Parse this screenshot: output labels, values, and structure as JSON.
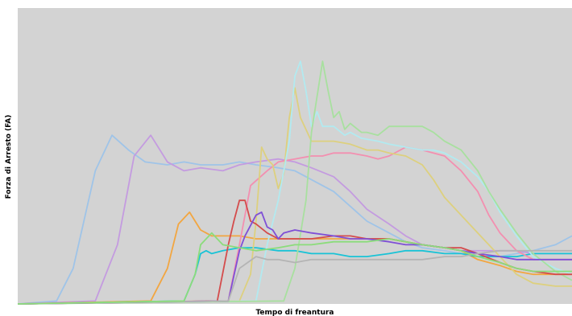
{
  "chart_data": {
    "type": "line",
    "title": "",
    "xlabel": "Tempo di freantura",
    "ylabel": "Forza di Arresto (FA)",
    "xlim": [
      0,
      100
    ],
    "ylim": [
      0,
      100
    ],
    "grid": false,
    "legend": "none",
    "background": "#d3d3d3",
    "series": [
      {
        "color": "#9fc4e8",
        "x": [
          0,
          7,
          10,
          14,
          17,
          20,
          23,
          27,
          30,
          33,
          37,
          40,
          43,
          47,
          50,
          53,
          57,
          60,
          63,
          67,
          70,
          73,
          77,
          80,
          83,
          87,
          90,
          93,
          97,
          100
        ],
        "y": [
          0,
          1,
          12,
          45,
          57,
          52,
          48,
          47,
          48,
          47,
          47,
          48,
          47,
          46,
          45,
          42,
          38,
          33,
          28,
          24,
          21,
          19,
          18,
          17,
          16,
          16,
          17,
          18,
          20,
          23
        ]
      },
      {
        "color": "#c49be0",
        "x": [
          0,
          14,
          18,
          21,
          24,
          27,
          30,
          33,
          37,
          40,
          43,
          47,
          50,
          53,
          57,
          60,
          63,
          67,
          70,
          73,
          77,
          80,
          83,
          87,
          90,
          93,
          97,
          100
        ],
        "y": [
          0,
          1,
          20,
          50,
          57,
          48,
          45,
          46,
          45,
          47,
          48,
          49,
          48,
          46,
          43,
          38,
          32,
          27,
          23,
          20,
          19,
          18,
          18,
          18,
          18,
          17,
          17,
          17
        ]
      },
      {
        "color": "#f2a641",
        "x": [
          0,
          24,
          27,
          29,
          31,
          33,
          35,
          37,
          40,
          43,
          47,
          50,
          53,
          57,
          60,
          63,
          67,
          70,
          73,
          77,
          80,
          83,
          87,
          90,
          93,
          97,
          100
        ],
        "y": [
          0,
          1,
          12,
          27,
          31,
          25,
          23,
          23,
          23,
          22,
          22,
          22,
          22,
          22,
          22,
          22,
          22,
          21,
          20,
          19,
          18,
          15,
          13,
          11,
          10,
          10,
          10
        ]
      },
      {
        "color": "#19c3d6",
        "x": [
          0,
          30,
          32,
          33,
          34,
          35,
          37,
          40,
          43,
          47,
          50,
          53,
          57,
          60,
          63,
          67,
          70,
          73,
          77,
          80,
          83,
          87,
          90,
          93,
          97,
          100
        ],
        "y": [
          0,
          1,
          10,
          17,
          18,
          17,
          18,
          19,
          19,
          18,
          18,
          17,
          17,
          16,
          16,
          17,
          18,
          18,
          17,
          17,
          16,
          16,
          16,
          17,
          17,
          17
        ]
      },
      {
        "color": "#f38fb0",
        "x": [
          0,
          38,
          40,
          42,
          45,
          47,
          50,
          53,
          55,
          57,
          60,
          63,
          65,
          67,
          70,
          73,
          77,
          80,
          83,
          85,
          87,
          90,
          93,
          97,
          100
        ],
        "y": [
          0,
          1,
          20,
          40,
          45,
          48,
          49,
          50,
          50,
          51,
          51,
          50,
          49,
          50,
          53,
          52,
          50,
          45,
          38,
          30,
          24,
          18,
          15,
          15,
          15
        ]
      },
      {
        "color": "#ddd07e",
        "x": [
          0,
          40,
          42,
          43,
          44,
          45,
          46,
          47,
          48,
          49,
          50,
          51,
          53,
          55,
          57,
          60,
          63,
          65,
          67,
          70,
          73,
          75,
          77,
          80,
          83,
          87,
          90,
          93,
          97,
          100
        ],
        "y": [
          0,
          1,
          10,
          28,
          53,
          49,
          47,
          39,
          44,
          63,
          73,
          63,
          55,
          55,
          55,
          54,
          52,
          52,
          51,
          50,
          47,
          42,
          36,
          30,
          24,
          16,
          10,
          7,
          6,
          6
        ]
      },
      {
        "color": "#b2eaf0",
        "x": [
          0,
          43,
          45,
          47,
          49,
          50,
          51,
          52,
          53,
          54,
          55,
          57,
          59,
          60,
          62,
          65,
          67,
          70,
          73,
          75,
          77,
          80,
          83,
          85,
          87,
          90,
          93,
          97,
          100
        ],
        "y": [
          0,
          1,
          20,
          35,
          55,
          77,
          82,
          72,
          60,
          65,
          60,
          60,
          57,
          58,
          56,
          55,
          54,
          53,
          52,
          52,
          51,
          48,
          43,
          38,
          31,
          23,
          16,
          12,
          10
        ]
      },
      {
        "color": "#a8e09f",
        "x": [
          0,
          48,
          50,
          52,
          53,
          54,
          55,
          56,
          57,
          58,
          59,
          60,
          62,
          63,
          65,
          67,
          70,
          73,
          75,
          77,
          80,
          83,
          85,
          87,
          90,
          93,
          97,
          100
        ],
        "y": [
          0,
          1,
          12,
          35,
          58,
          70,
          82,
          72,
          63,
          65,
          59,
          61,
          58,
          58,
          57,
          60,
          60,
          60,
          58,
          55,
          52,
          45,
          38,
          32,
          24,
          17,
          11,
          8
        ]
      },
      {
        "color": "#d44c4c",
        "x": [
          0,
          36,
          38,
          39,
          40,
          41,
          42,
          43,
          45,
          47,
          50,
          53,
          57,
          60,
          63,
          67,
          70,
          73,
          77,
          80,
          83,
          87,
          90,
          93,
          97,
          100
        ],
        "y": [
          0,
          1,
          20,
          28,
          35,
          35,
          28,
          27,
          24,
          22,
          22,
          22,
          23,
          23,
          22,
          22,
          21,
          20,
          19,
          19,
          17,
          14,
          12,
          11,
          10,
          10
        ]
      },
      {
        "color": "#7f4fd6",
        "x": [
          0,
          38,
          40,
          41,
          43,
          44,
          45,
          46,
          47,
          48,
          50,
          53,
          57,
          60,
          63,
          67,
          70,
          73,
          77,
          80,
          83,
          87,
          90,
          93,
          97,
          100
        ],
        "y": [
          0,
          1,
          18,
          23,
          30,
          31,
          26,
          25,
          22,
          24,
          25,
          24,
          23,
          22,
          22,
          21,
          20,
          20,
          19,
          18,
          17,
          16,
          15,
          15,
          15,
          15
        ]
      },
      {
        "color": "#b4b4b4",
        "x": [
          0,
          38,
          40,
          43,
          45,
          47,
          50,
          53,
          57,
          60,
          63,
          67,
          70,
          73,
          77,
          80,
          83,
          87,
          90,
          93,
          97,
          100
        ],
        "y": [
          0,
          1,
          12,
          16,
          15,
          15,
          14,
          15,
          15,
          15,
          15,
          15,
          15,
          15,
          16,
          16,
          17,
          18,
          18,
          18,
          18,
          18
        ]
      },
      {
        "color": "#8bdc7b",
        "x": [
          0,
          30,
          32,
          33,
          35,
          37,
          40,
          43,
          47,
          50,
          53,
          57,
          60,
          63,
          67,
          70,
          73,
          77,
          80,
          83,
          87,
          90,
          93,
          97,
          100
        ],
        "y": [
          0,
          1,
          10,
          20,
          24,
          20,
          19,
          18,
          19,
          20,
          20,
          21,
          21,
          21,
          22,
          21,
          20,
          19,
          18,
          16,
          14,
          12,
          11,
          11,
          11
        ]
      }
    ]
  }
}
